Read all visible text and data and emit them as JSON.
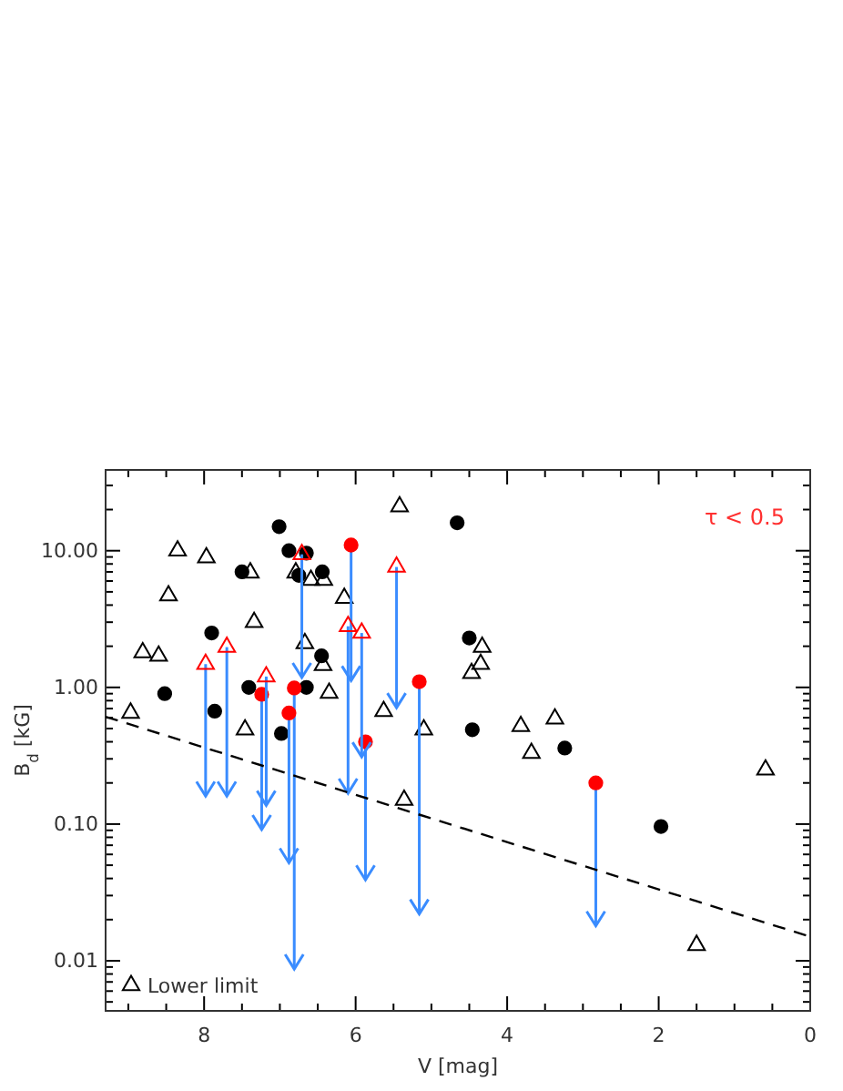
{
  "chart_data": {
    "type": "scatter",
    "xlabel": "V [mag]",
    "ylabel": "B$_{d}$ [kG]",
    "log": "y",
    "legend": "bottom left",
    "grid": false,
    "xlim": [
      9.3,
      0
    ],
    "xticks": [
      {
        "value": 9,
        "label": null
      },
      {
        "value": 8.5,
        "label": null
      },
      8,
      {
        "value": 7.5,
        "label": null
      },
      {
        "value": 7,
        "label": null
      },
      {
        "value": 6.5,
        "label": null
      },
      6,
      {
        "value": 5.5,
        "label": null
      },
      {
        "value": 5,
        "label": null
      },
      {
        "value": 4.5,
        "label": null
      },
      4,
      {
        "value": 3.5,
        "label": null
      },
      {
        "value": 3,
        "label": null
      },
      {
        "value": 2.5,
        "label": null
      },
      2,
      {
        "value": 1.5,
        "label": null
      },
      {
        "value": 1,
        "label": null
      },
      {
        "value": 0.5,
        "label": null
      },
      0
    ],
    "ylim": [
      0.0043,
      39
    ],
    "yticks": [
      {
        "value": 0.005,
        "label": null
      },
      {
        "value": 0.006,
        "label": null
      },
      {
        "value": 0.007,
        "label": null
      },
      {
        "value": 0.008,
        "label": null
      },
      {
        "value": 0.009,
        "label": null
      },
      {
        "value": 0.01,
        "label": "0.01"
      },
      {
        "value": 0.02,
        "label": null
      },
      {
        "value": 0.03,
        "label": null
      },
      {
        "value": 0.04,
        "label": null
      },
      {
        "value": 0.05,
        "label": null
      },
      {
        "value": 0.06,
        "label": null
      },
      {
        "value": 0.07,
        "label": null
      },
      {
        "value": 0.08,
        "label": null
      },
      {
        "value": 0.09,
        "label": null
      },
      {
        "value": 0.1,
        "label": "0.10"
      },
      {
        "value": 0.2,
        "label": null
      },
      {
        "value": 0.3,
        "label": null
      },
      {
        "value": 0.4,
        "label": null
      },
      {
        "value": 0.5,
        "label": null
      },
      {
        "value": 0.6,
        "label": null
      },
      {
        "value": 0.7,
        "label": null
      },
      {
        "value": 0.8,
        "label": null
      },
      {
        "value": 0.9,
        "label": null
      },
      {
        "value": 1,
        "label": "1.00"
      },
      {
        "value": 2,
        "label": null
      },
      {
        "value": 3,
        "label": null
      },
      {
        "value": 4,
        "label": null
      },
      {
        "value": 5,
        "label": null
      },
      {
        "value": 6,
        "label": null
      },
      {
        "value": 7,
        "label": null
      },
      {
        "value": 8,
        "label": null
      },
      {
        "value": 9,
        "label": null
      },
      {
        "value": 10,
        "label": "10.00"
      },
      {
        "value": 20,
        "label": null
      },
      {
        "value": 30,
        "label": null
      }
    ],
    "annotations": [
      "τ < 0.5"
    ],
    "series": [
      {
        "marker": "circle",
        "color": "#000000",
        "x": [
          7.01,
          6.88,
          6.65,
          7.5,
          6.44,
          6.75,
          7.9,
          6.45,
          8.52,
          7.41,
          6.65,
          7.86,
          6.98,
          4.66,
          4.5,
          4.46,
          3.24,
          1.97
        ],
        "values": [
          15,
          10,
          9.6,
          7,
          7,
          6.6,
          2.5,
          1.7,
          0.9,
          1,
          1,
          0.67,
          0.46,
          16,
          2.3,
          0.49,
          0.36,
          0.096
        ]
      },
      {
        "name": "Lower limit",
        "marker": "triangle",
        "color": "#000000",
        "x": [
          5.42,
          8.35,
          7.97,
          7.39,
          6.79,
          6.59,
          6.42,
          8.47,
          6.15,
          7.34,
          6.67,
          8.81,
          8.6,
          6.43,
          6.35,
          8.97,
          7.46,
          5.63,
          5.1,
          5.36,
          4.47,
          4.33,
          4.35,
          3.82,
          3.37,
          3.68,
          0.59,
          1.5
        ],
        "values": [
          21,
          10,
          8.9,
          6.9,
          6.9,
          6.1,
          6.1,
          4.7,
          4.5,
          3,
          2.1,
          1.8,
          1.7,
          1.45,
          0.91,
          0.65,
          0.49,
          0.67,
          0.49,
          0.15,
          1.27,
          1.97,
          1.48,
          0.52,
          0.59,
          0.33,
          0.25,
          0.013
        ]
      },
      {
        "marker": "circle",
        "color": "#ff0000",
        "x": [
          7.24,
          6.88,
          6.81,
          6.06,
          5.87,
          5.16,
          2.83
        ],
        "values": [
          0.89,
          0.65,
          0.99,
          11,
          0.4,
          1.1,
          0.2
        ],
        "errors": [
          [
            0.091,
            0.89
          ],
          [
            0.052,
            0.65
          ],
          [
            0.0087,
            0.99
          ],
          [
            1.12,
            11
          ],
          [
            0.039,
            0.4
          ],
          [
            0.022,
            1.1
          ],
          [
            0.018,
            0.2
          ]
        ]
      },
      {
        "marker": "triangle",
        "color": "#ff0000",
        "x": [
          7.98,
          7.7,
          7.18,
          6.71,
          6.1,
          5.92,
          5.46
        ],
        "values": [
          1.48,
          1.97,
          1.2,
          9.4,
          2.8,
          2.5,
          7.6
        ],
        "errors": [
          [
            0.16,
            1.48
          ],
          [
            0.16,
            1.97
          ],
          [
            0.137,
            1.2
          ],
          [
            1.18,
            9.4
          ],
          [
            0.168,
            2.8
          ],
          [
            0.31,
            2.5
          ],
          [
            0.71,
            7.6
          ]
        ]
      },
      {
        "type": "line",
        "line_style": "dashed",
        "color": "#000000",
        "x": [
          9.3,
          0
        ],
        "values": [
          0.61,
          0.015
        ]
      }
    ]
  }
}
